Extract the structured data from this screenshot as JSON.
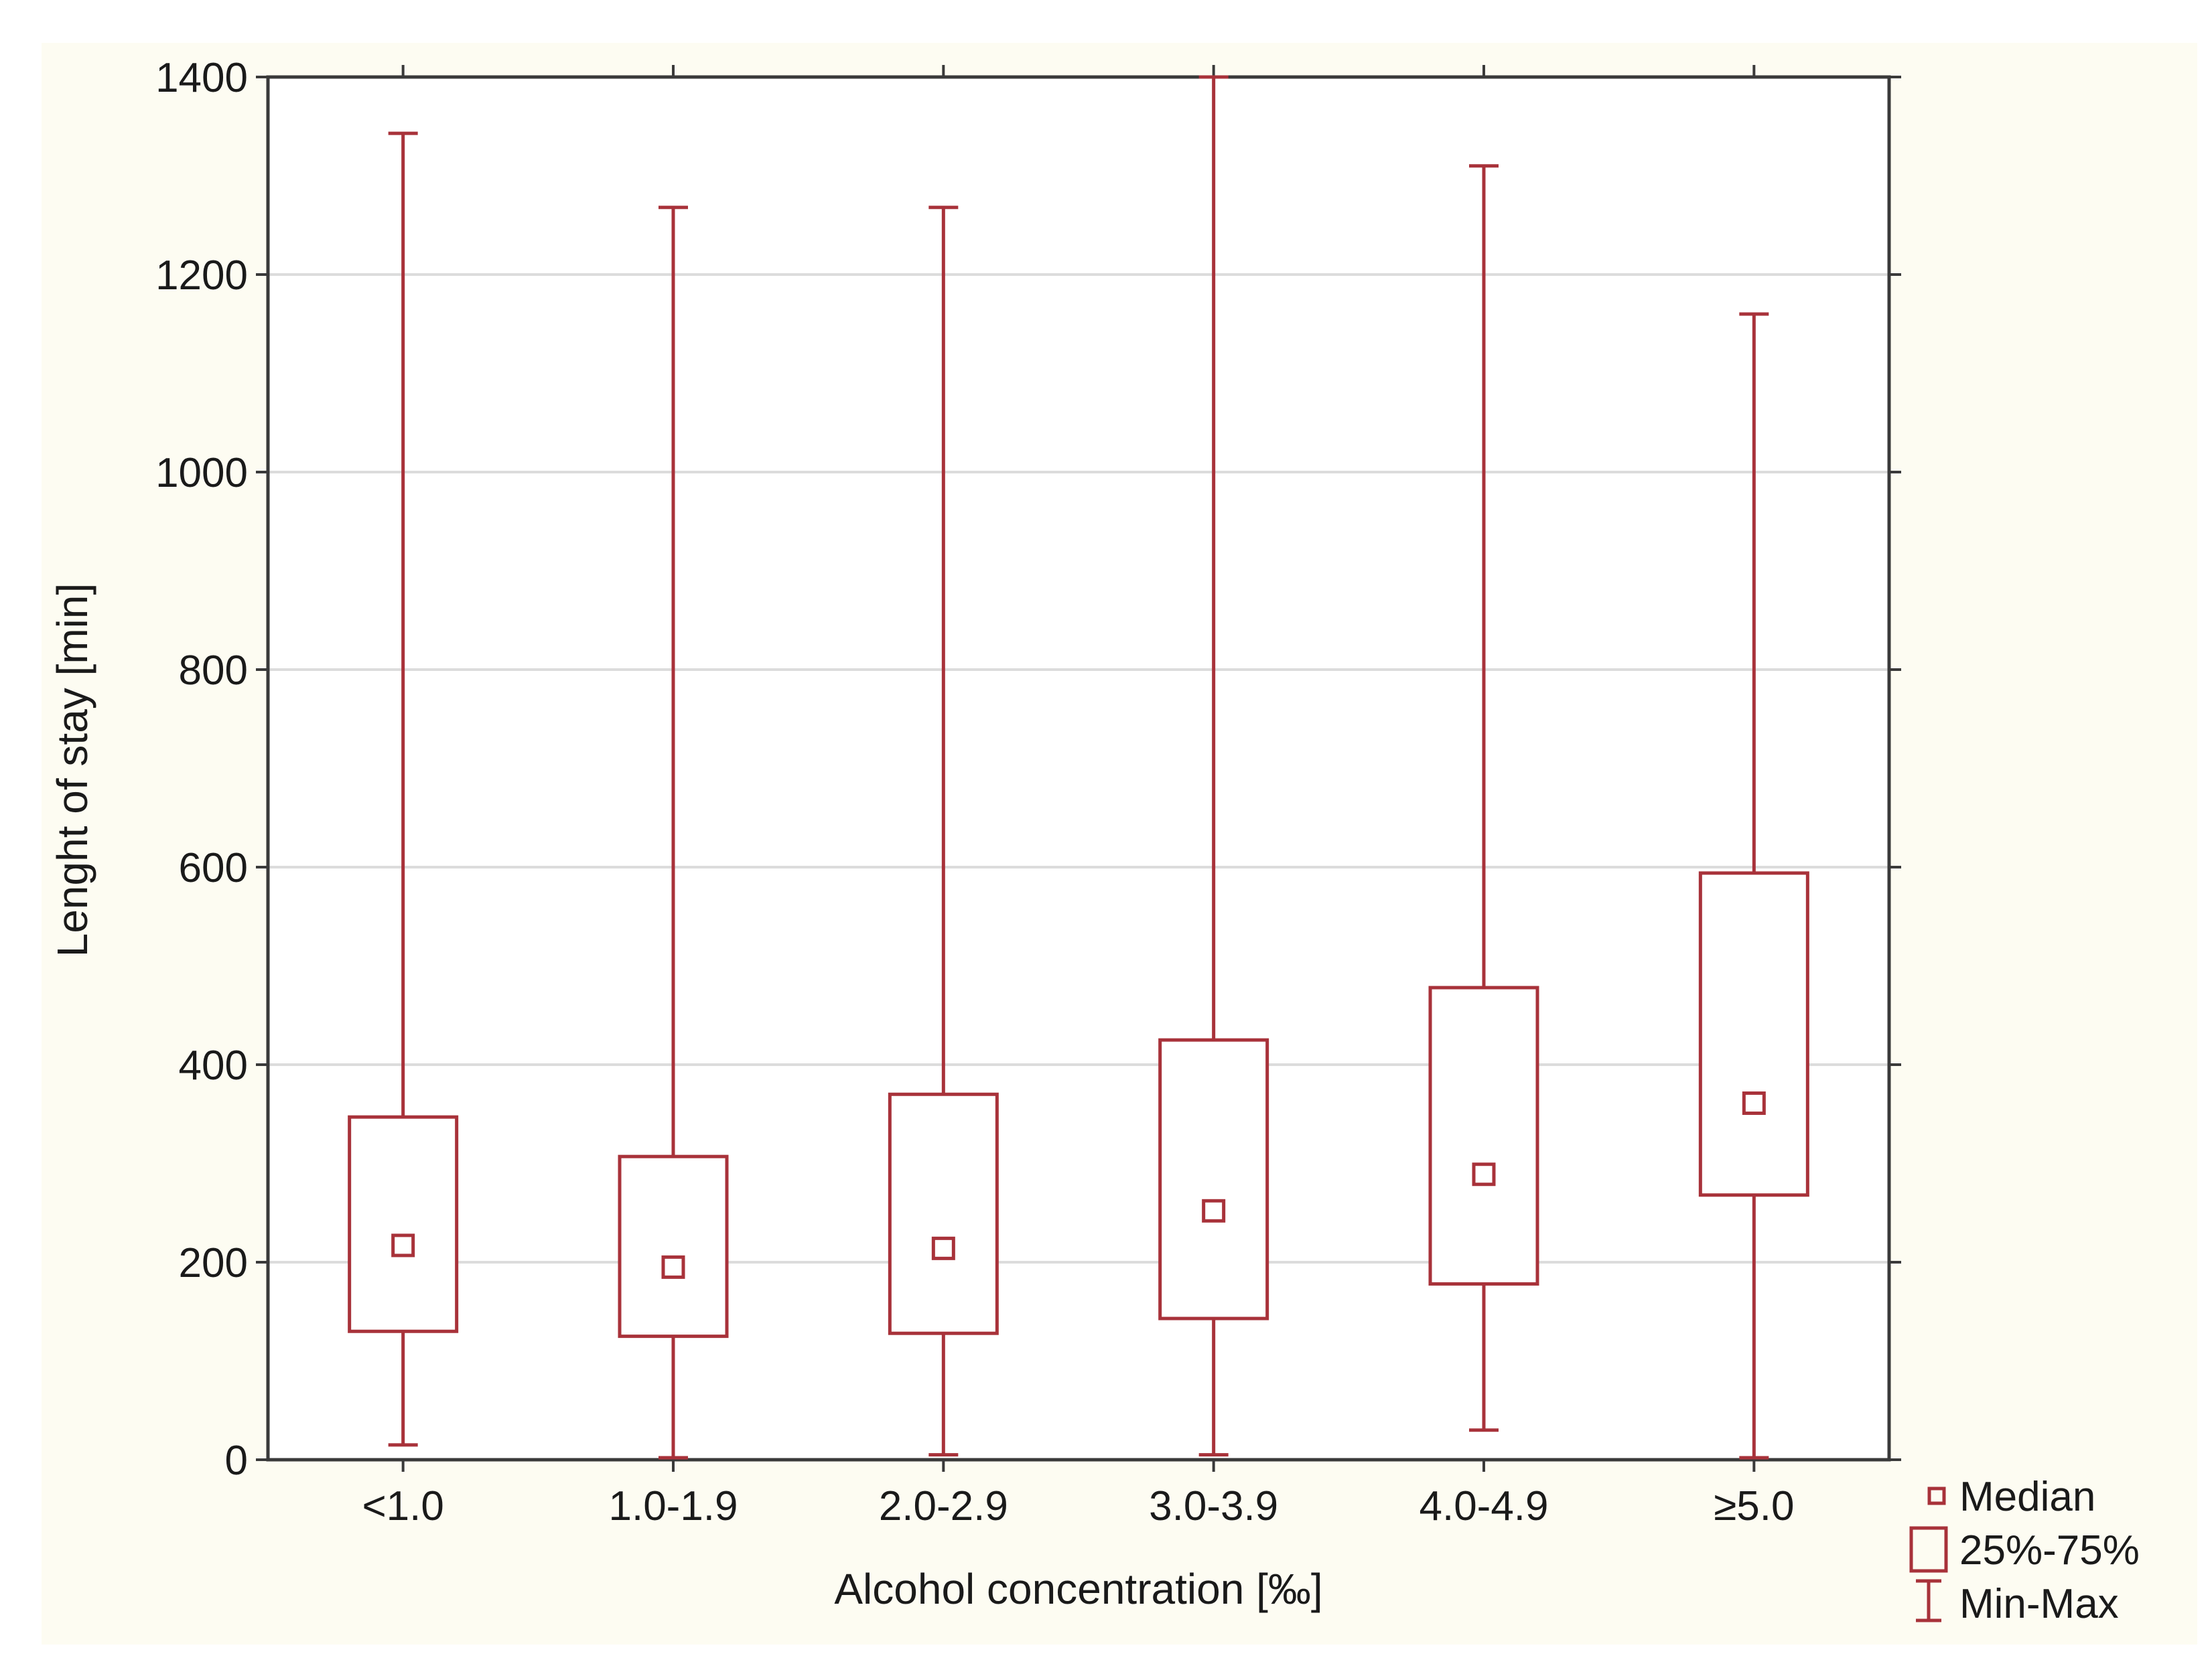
{
  "chart_data": {
    "type": "boxplot",
    "title": "",
    "xlabel": "Alcohol concentration [‰]",
    "ylabel": "Lenght of stay [min]",
    "ylim": [
      0,
      1400
    ],
    "yticks": [
      0,
      200,
      400,
      600,
      800,
      1000,
      1200,
      1400
    ],
    "ytick_labels": [
      "0",
      "200",
      "400",
      "600",
      "800",
      "1000",
      "1200",
      "1400"
    ],
    "grid": "horizontal",
    "legend_position": "bottom-right",
    "color": "#a8323a",
    "categories": [
      "<1.0",
      "1.0-1.9",
      "2.0-2.9",
      "3.0-3.9",
      "4.0-4.9",
      "≥5.0"
    ],
    "boxes": [
      {
        "category": "<1.0",
        "min": 15,
        "q1": 130,
        "median": 217,
        "q3": 347,
        "max": 1343
      },
      {
        "category": "1.0-1.9",
        "min": 2,
        "q1": 125,
        "median": 195,
        "q3": 307,
        "max": 1268
      },
      {
        "category": "2.0-2.9",
        "min": 5,
        "q1": 128,
        "median": 214,
        "q3": 370,
        "max": 1268
      },
      {
        "category": "3.0-3.9",
        "min": 5,
        "q1": 143,
        "median": 252,
        "q3": 425,
        "max": 1400
      },
      {
        "category": "4.0-4.9",
        "min": 30,
        "q1": 178,
        "median": 289,
        "q3": 478,
        "max": 1310
      },
      {
        "category": "≥5.0",
        "min": 2,
        "q1": 268,
        "median": 361,
        "q3": 594,
        "max": 1160
      }
    ],
    "legend": [
      {
        "symbol": "median",
        "label": "Median"
      },
      {
        "symbol": "box",
        "label": "25%-75%"
      },
      {
        "symbol": "whisker",
        "label": "Min-Max"
      }
    ]
  }
}
